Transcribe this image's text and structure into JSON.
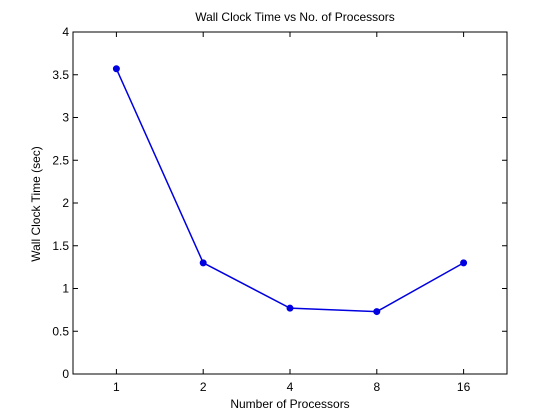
{
  "chart_data": {
    "type": "line",
    "title": "Wall Clock Time vs No. of Processors",
    "xlabel": "Number of Processors",
    "ylabel": "Wall Clock Time (sec)",
    "categories": [
      "1",
      "2",
      "4",
      "8",
      "16"
    ],
    "x_range": [
      0.5,
      5.5
    ],
    "series": [
      {
        "values": [
          3.57,
          1.3,
          0.77,
          0.73,
          1.3
        ],
        "color": "#0000e0",
        "marker": "dot"
      }
    ],
    "ylim": [
      0,
      4
    ],
    "yticks": [
      0,
      0.5,
      1,
      1.5,
      2,
      2.5,
      3,
      3.5,
      4
    ],
    "grid": false,
    "legend": "none"
  }
}
